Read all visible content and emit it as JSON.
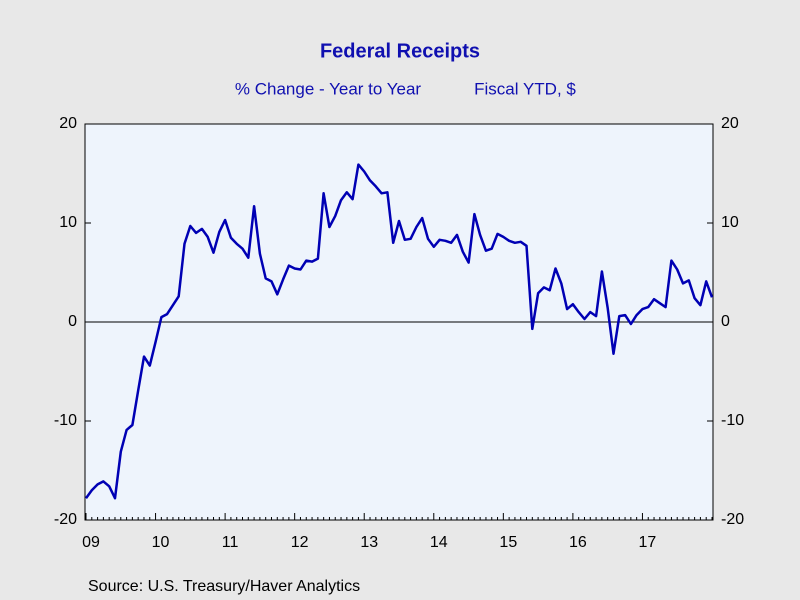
{
  "chart_data": {
    "type": "line",
    "title": "Federal Receipts",
    "subtitle": [
      "% Change - Year to Year",
      "Fiscal YTD, $"
    ],
    "source": "Source:  U.S. Treasury/Haver Analytics",
    "categories": [
      "09",
      null,
      null,
      null,
      null,
      null,
      null,
      null,
      null,
      null,
      null,
      null,
      "10",
      null,
      null,
      null,
      null,
      null,
      null,
      null,
      null,
      null,
      null,
      null,
      "11",
      null,
      null,
      null,
      null,
      null,
      null,
      null,
      null,
      null,
      null,
      null,
      "12",
      null,
      null,
      null,
      null,
      null,
      null,
      null,
      null,
      null,
      null,
      null,
      "13",
      null,
      null,
      null,
      null,
      null,
      null,
      null,
      null,
      null,
      null,
      null,
      "14",
      null,
      null,
      null,
      null,
      null,
      null,
      null,
      null,
      null,
      null,
      null,
      "15",
      null,
      null,
      null,
      null,
      null,
      null,
      null,
      null,
      null,
      null,
      null,
      "16",
      null,
      null,
      null,
      null,
      null,
      null,
      null,
      null,
      null,
      null,
      null,
      "17",
      null,
      null,
      null,
      null,
      null,
      null,
      null,
      null,
      null,
      null,
      null,
      null
    ],
    "series": [
      {
        "name": "Federal Receipts",
        "color": "#0000b4",
        "values": [
          -17.8,
          -17.0,
          -16.4,
          -16.1,
          -16.6,
          -17.8,
          -13.1,
          -10.9,
          -10.4,
          -6.9,
          -3.5,
          -4.4,
          -2.0,
          0.5,
          0.8,
          1.7,
          2.6,
          7.9,
          9.7,
          9.0,
          9.4,
          8.6,
          7.0,
          9.1,
          10.3,
          8.5,
          7.9,
          7.4,
          6.5,
          11.7,
          6.9,
          4.4,
          4.1,
          2.8,
          4.3,
          5.7,
          5.4,
          5.3,
          6.2,
          6.1,
          6.4,
          13.0,
          9.6,
          10.7,
          12.3,
          13.1,
          12.4,
          15.9,
          15.2,
          14.3,
          13.7,
          13.0,
          13.1,
          8.0,
          10.2,
          8.3,
          8.4,
          9.6,
          10.5,
          8.4,
          7.6,
          8.3,
          8.2,
          8.0,
          8.8,
          7.1,
          6.0,
          10.9,
          8.8,
          7.2,
          7.4,
          8.9,
          8.6,
          8.2,
          8.0,
          8.1,
          7.7,
          -0.7,
          2.9,
          3.5,
          3.2,
          5.4,
          3.9,
          1.3,
          1.8,
          1.0,
          0.3,
          1.0,
          0.6,
          5.1,
          1.4,
          -3.2,
          0.6,
          0.7,
          -0.2,
          0.7,
          1.3,
          1.5,
          2.3,
          1.9,
          1.5,
          6.2,
          5.3,
          3.9,
          4.2,
          2.4,
          1.7,
          4.1,
          2.5
        ]
      }
    ],
    "ylim": [
      -20,
      20
    ],
    "yticks": [
      20,
      10,
      0,
      -10,
      -20
    ],
    "y2lim": [
      -20,
      20
    ],
    "y2ticks": [
      20,
      10,
      0,
      -10,
      -20
    ]
  }
}
